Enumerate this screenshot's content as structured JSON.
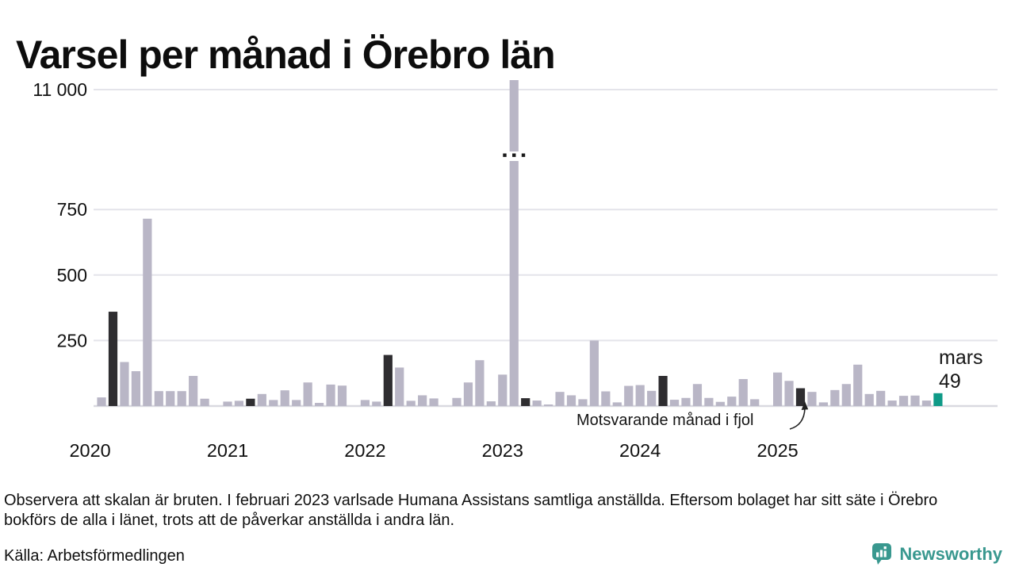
{
  "page_title": "Varsel per månad i Örebro län",
  "footer": {
    "note": "Observera att skalan är bruten. I februari 2023 varlsade Humana Assistans samtliga anställda. Eftersom bolaget har sitt säte i Örebro bokförs de alla i länet, trots att de påverkar anställda i andra län.",
    "source": "Källa: Arbetsförmedlingen",
    "brand": "Newsworthy"
  },
  "annotations": {
    "last_year_note": "Motsvarande månad i fjol",
    "current_month_name": "mars",
    "current_month_value": "49"
  },
  "chart_data": {
    "type": "bar",
    "title": "Varsel per månad i Örebro län",
    "y_axis": {
      "ylim": [
        0,
        750
      ],
      "ticks": [
        {
          "label": "250",
          "value": 250
        },
        {
          "label": "500",
          "value": 500
        },
        {
          "label": "750",
          "value": 750
        }
      ],
      "broken_scale_tick": {
        "label": "11 000",
        "value": 11000
      },
      "break_symbol": "···",
      "scale_note": "axis broken between 750 and 11 000"
    },
    "x_axis": {
      "year_labels": [
        "2020",
        "2021",
        "2022",
        "2023",
        "2024",
        "2025"
      ]
    },
    "colors": {
      "bar": "#b9b6c6",
      "dark": "#2e2d30",
      "current": "#0f9a87",
      "gridline": "#e4e4ea",
      "baseline": "#d9d9e0",
      "text": "#111111",
      "logo": "#39988f"
    },
    "series": [
      {
        "month": "2020-01",
        "value": 0
      },
      {
        "month": "2020-02",
        "value": 33
      },
      {
        "month": "2020-03",
        "value": 360,
        "highlight": "fjol"
      },
      {
        "month": "2020-04",
        "value": 168
      },
      {
        "month": "2020-05",
        "value": 133
      },
      {
        "month": "2020-06",
        "value": 715
      },
      {
        "month": "2020-07",
        "value": 57
      },
      {
        "month": "2020-08",
        "value": 57
      },
      {
        "month": "2020-09",
        "value": 57
      },
      {
        "month": "2020-10",
        "value": 115
      },
      {
        "month": "2020-11",
        "value": 28
      },
      {
        "month": "2020-12",
        "value": 0
      },
      {
        "month": "2021-01",
        "value": 17
      },
      {
        "month": "2021-02",
        "value": 20
      },
      {
        "month": "2021-03",
        "value": 28,
        "highlight": "fjol"
      },
      {
        "month": "2021-04",
        "value": 46
      },
      {
        "month": "2021-05",
        "value": 23
      },
      {
        "month": "2021-06",
        "value": 60
      },
      {
        "month": "2021-07",
        "value": 23
      },
      {
        "month": "2021-08",
        "value": 90
      },
      {
        "month": "2021-09",
        "value": 12
      },
      {
        "month": "2021-10",
        "value": 82
      },
      {
        "month": "2021-11",
        "value": 78
      },
      {
        "month": "2021-12",
        "value": 0
      },
      {
        "month": "2022-01",
        "value": 23
      },
      {
        "month": "2022-02",
        "value": 17
      },
      {
        "month": "2022-03",
        "value": 195,
        "highlight": "fjol"
      },
      {
        "month": "2022-04",
        "value": 147
      },
      {
        "month": "2022-05",
        "value": 20
      },
      {
        "month": "2022-06",
        "value": 41
      },
      {
        "month": "2022-07",
        "value": 29
      },
      {
        "month": "2022-08",
        "value": 0
      },
      {
        "month": "2022-09",
        "value": 31
      },
      {
        "month": "2022-10",
        "value": 90
      },
      {
        "month": "2022-11",
        "value": 175
      },
      {
        "month": "2022-12",
        "value": 18
      },
      {
        "month": "2023-01",
        "value": 120
      },
      {
        "month": "2023-02",
        "value": 11000,
        "broken": true
      },
      {
        "month": "2023-03",
        "value": 30,
        "highlight": "fjol"
      },
      {
        "month": "2023-04",
        "value": 21
      },
      {
        "month": "2023-05",
        "value": 6
      },
      {
        "month": "2023-06",
        "value": 54
      },
      {
        "month": "2023-07",
        "value": 41
      },
      {
        "month": "2023-08",
        "value": 26
      },
      {
        "month": "2023-09",
        "value": 250
      },
      {
        "month": "2023-10",
        "value": 56
      },
      {
        "month": "2023-11",
        "value": 14
      },
      {
        "month": "2023-12",
        "value": 77
      },
      {
        "month": "2024-01",
        "value": 80
      },
      {
        "month": "2024-02",
        "value": 58
      },
      {
        "month": "2024-03",
        "value": 115,
        "highlight": "fjol"
      },
      {
        "month": "2024-04",
        "value": 24
      },
      {
        "month": "2024-05",
        "value": 31
      },
      {
        "month": "2024-06",
        "value": 84
      },
      {
        "month": "2024-07",
        "value": 31
      },
      {
        "month": "2024-08",
        "value": 16
      },
      {
        "month": "2024-09",
        "value": 36
      },
      {
        "month": "2024-10",
        "value": 103
      },
      {
        "month": "2024-11",
        "value": 26
      },
      {
        "month": "2024-12",
        "value": 0
      },
      {
        "month": "2025-01",
        "value": 128
      },
      {
        "month": "2025-02",
        "value": 96
      },
      {
        "month": "2025-03",
        "value": 68,
        "highlight": "fjol"
      },
      {
        "month": "2025-04",
        "value": 54
      },
      {
        "month": "2025-05",
        "value": 14
      },
      {
        "month": "2025-06",
        "value": 61
      },
      {
        "month": "2025-07",
        "value": 84
      },
      {
        "month": "2025-08",
        "value": 158
      },
      {
        "month": "2025-09",
        "value": 46
      },
      {
        "month": "2025-10",
        "value": 58
      },
      {
        "month": "2025-11",
        "value": 21
      },
      {
        "month": "2025-12",
        "value": 39
      },
      {
        "month": "2026-01",
        "value": 40
      },
      {
        "month": "2026-02",
        "value": 21
      },
      {
        "month": "2026-03",
        "value": 49,
        "highlight": "current"
      }
    ]
  }
}
